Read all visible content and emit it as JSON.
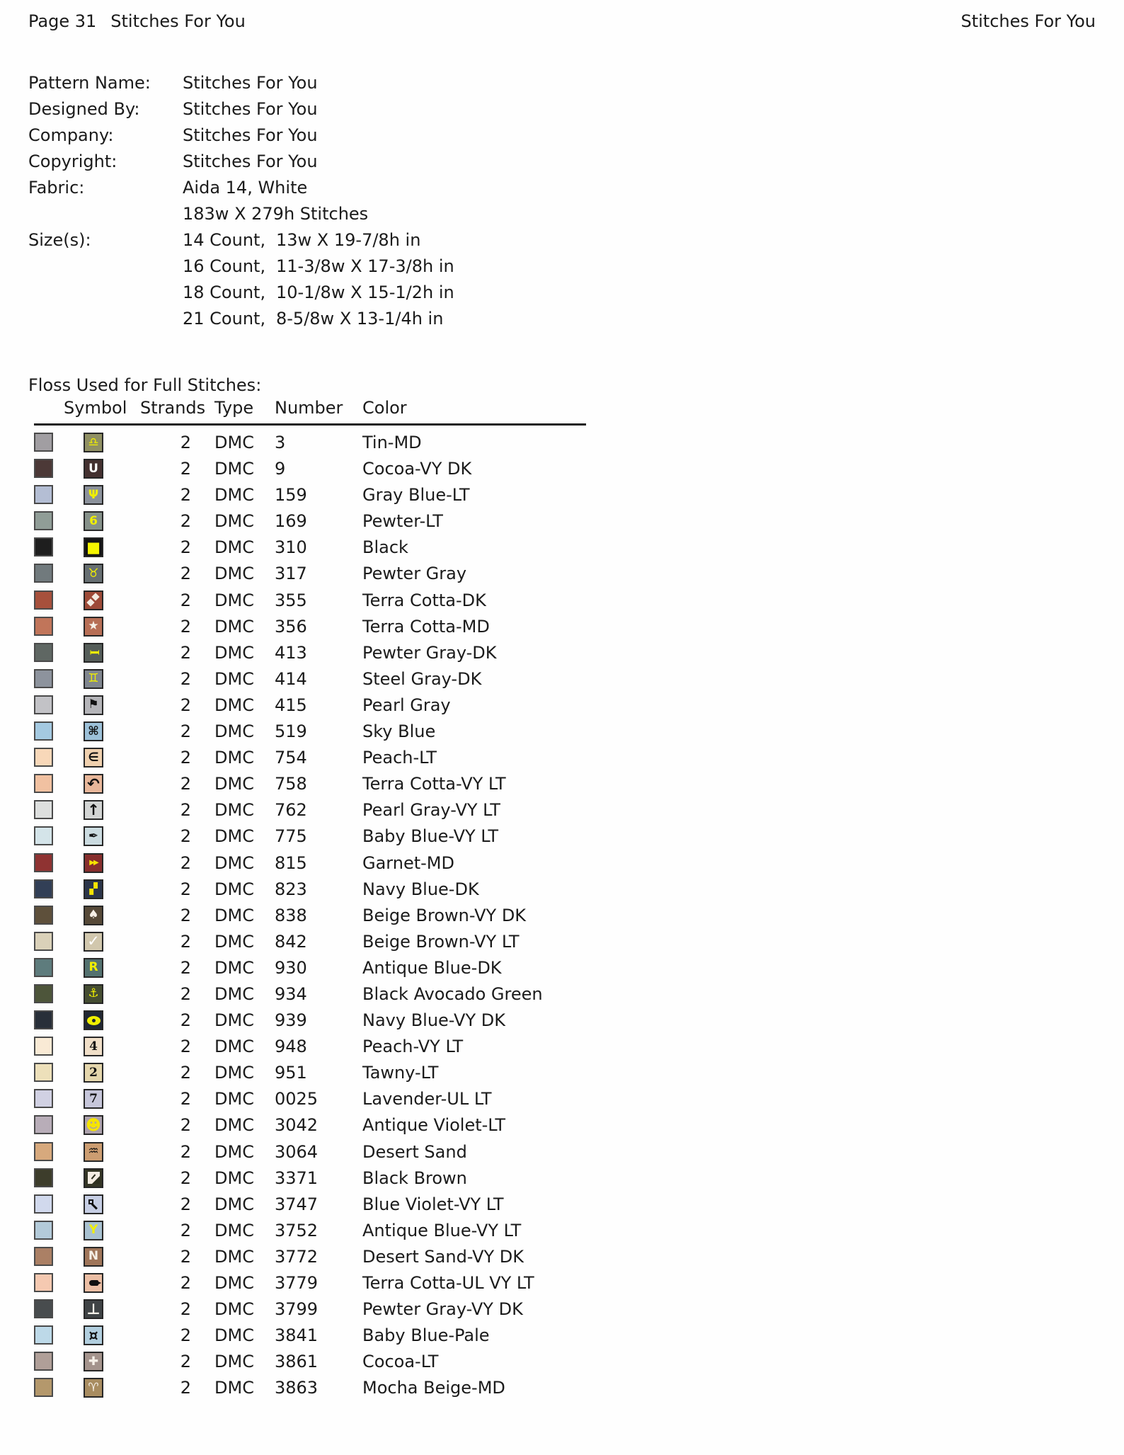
{
  "header": {
    "page_label": "Page 31",
    "title": "Stitches For You",
    "right_title": "Stitches For You"
  },
  "info": {
    "rows": [
      {
        "label": "Pattern Name:",
        "value": "Stitches For You"
      },
      {
        "label": "Designed By:",
        "value": "Stitches For You"
      },
      {
        "label": "Company:",
        "value": "Stitches For You"
      },
      {
        "label": "Copyright:",
        "value": "Stitches For You"
      },
      {
        "label": "Fabric:",
        "value": "Aida 14, White"
      },
      {
        "label": "",
        "value": "183w X 279h Stitches"
      },
      {
        "label": "Size(s):",
        "count": "14 Count,",
        "dims": "13w X 19-7/8h in"
      },
      {
        "label": "",
        "count": "16 Count,",
        "dims": "11-3/8w X 17-3/8h in"
      },
      {
        "label": "",
        "count": "18 Count,",
        "dims": "10-1/8w X 15-1/2h in"
      },
      {
        "label": "",
        "count": "21 Count,",
        "dims": "8-5/8w X 13-1/4h in"
      }
    ]
  },
  "floss": {
    "title": "Floss Used for Full Stitches:",
    "columns": [
      "Symbol",
      "Strands",
      "Type",
      "Number",
      "Color"
    ],
    "rows": [
      {
        "swatch": "#a19ea2",
        "bg": "#8f8f63",
        "fg": "#f0ef00",
        "glyph": "♎",
        "icon": "libra-icon",
        "strands": "2",
        "type": "DMC",
        "number": "3",
        "color_name": "Tin-MD"
      },
      {
        "swatch": "#4c3937",
        "bg": "#443130",
        "fg": "#ffffff",
        "glyph": "U",
        "icon": "letter-u-icon",
        "strands": "2",
        "type": "DMC",
        "number": "9",
        "color_name": "Cocoa-VY DK"
      },
      {
        "swatch": "#b4bed4",
        "bg": "#8b919b",
        "fg": "#f0ef00",
        "glyph": "Ψ",
        "icon": "psi-icon",
        "strands": "2",
        "type": "DMC",
        "number": "159",
        "color_name": "Gray Blue-LT"
      },
      {
        "swatch": "#909d97",
        "bg": "#859089",
        "fg": "#f0ef00",
        "glyph": "6",
        "icon": "digit-6-icon",
        "strands": "2",
        "type": "DMC",
        "number": "169",
        "color_name": "Pewter-LT"
      },
      {
        "swatch": "#1e1e1e",
        "bg": "#141414",
        "fg": "#f5f500",
        "glyph": "■",
        "cls": "big",
        "icon": "filled-square-icon",
        "strands": "2",
        "type": "DMC",
        "number": "310",
        "color_name": "Black"
      },
      {
        "swatch": "#717a7d",
        "bg": "#666e71",
        "fg": "#f0ef00",
        "glyph": "♉",
        "icon": "taurus-icon",
        "strands": "2",
        "type": "DMC",
        "number": "317",
        "color_name": "Pewter Gray"
      },
      {
        "swatch": "#a7503c",
        "bg": "#9d4a37",
        "shape": "diamonds",
        "icon": "double-diamond-icon",
        "strands": "2",
        "type": "DMC",
        "number": "355",
        "color_name": "Terra Cotta-DK"
      },
      {
        "swatch": "#c1755a",
        "bg": "#b76e55",
        "fg": "#f6f0e8",
        "glyph": "★",
        "icon": "star-icon",
        "strands": "2",
        "type": "DMC",
        "number": "356",
        "color_name": "Terra Cotta-MD"
      },
      {
        "swatch": "#5f6763",
        "bg": "#555d59",
        "fg": "#f0ef00",
        "glyph": "I",
        "cls": "rot90",
        "icon": "i-beam-icon",
        "strands": "2",
        "type": "DMC",
        "number": "413",
        "color_name": "Pewter Gray-DK"
      },
      {
        "swatch": "#8d939d",
        "bg": "#7f858e",
        "fg": "#f0ef00",
        "glyph": "♊",
        "icon": "gemini-icon",
        "strands": "2",
        "type": "DMC",
        "number": "414",
        "color_name": "Steel Gray-DK"
      },
      {
        "swatch": "#c2c2c6",
        "bg": "#b4b4b8",
        "fg": "#111111",
        "glyph": "⚑",
        "icon": "flag-icon",
        "strands": "2",
        "type": "DMC",
        "number": "415",
        "color_name": "Pearl Gray"
      },
      {
        "swatch": "#a4c9e1",
        "bg": "#9cc0d8",
        "fg": "#111111",
        "glyph": "⌘",
        "icon": "command-icon",
        "strands": "2",
        "type": "DMC",
        "number": "519",
        "color_name": "Sky Blue"
      },
      {
        "swatch": "#f8d8b9",
        "bg": "#efd0ae",
        "fg": "#111111",
        "glyph": "∈",
        "icon": "element-of-icon",
        "strands": "2",
        "type": "DMC",
        "number": "754",
        "color_name": "Peach-LT"
      },
      {
        "swatch": "#f1c1a1",
        "bg": "#e8b79a",
        "fg": "#111111",
        "glyph": "↶",
        "cls": "big",
        "icon": "curved-arrow-icon",
        "strands": "2",
        "type": "DMC",
        "number": "758",
        "color_name": "Terra Cotta-VY LT"
      },
      {
        "swatch": "#dddfde",
        "bg": "#d2d4d3",
        "fg": "#111111",
        "glyph": "↑",
        "cls": "big",
        "icon": "up-arrow-icon",
        "strands": "2",
        "type": "DMC",
        "number": "762",
        "color_name": "Pearl Gray-VY LT"
      },
      {
        "swatch": "#d4e4e9",
        "bg": "#cbdbe0",
        "fg": "#111111",
        "glyph": "✒",
        "icon": "pen-nib-icon",
        "strands": "2",
        "type": "DMC",
        "number": "775",
        "color_name": "Baby Blue-VY LT"
      },
      {
        "swatch": "#8f3332",
        "bg": "#872e2d",
        "fg": "#f5e400",
        "glyph": "▶▶",
        "cls": "ff",
        "icon": "fast-forward-icon",
        "strands": "2",
        "type": "DMC",
        "number": "815",
        "color_name": "Garnet-MD"
      },
      {
        "swatch": "#323f56",
        "bg": "#2b354a",
        "fg": "#f5e400",
        "glyph": "▞",
        "cls": "block",
        "icon": "stepped-squares-icon",
        "strands": "2",
        "type": "DMC",
        "number": "823",
        "color_name": "Navy Blue-DK"
      },
      {
        "swatch": "#5e503b",
        "bg": "#564938",
        "fg": "#f6f0e8",
        "glyph": "♠",
        "icon": "spade-icon",
        "strands": "2",
        "type": "DMC",
        "number": "838",
        "color_name": "Beige Brown-VY DK"
      },
      {
        "swatch": "#dad1b9",
        "bg": "#d1c7ad",
        "fg": "#ffffff",
        "glyph": "✓",
        "cls": "big",
        "icon": "check-mark-icon",
        "strands": "2",
        "type": "DMC",
        "number": "842",
        "color_name": "Beige Brown-VY LT"
      },
      {
        "swatch": "#5e7c7d",
        "bg": "#53716f",
        "fg": "#f0ef00",
        "glyph": "R",
        "icon": "letter-r-icon",
        "strands": "2",
        "type": "DMC",
        "number": "930",
        "color_name": "Antique Blue-DK"
      },
      {
        "swatch": "#4d553a",
        "bg": "#454d32",
        "fg": "#f0ef00",
        "glyph": "⚓",
        "icon": "anchor-icon",
        "strands": "2",
        "type": "DMC",
        "number": "934",
        "color_name": "Black Avocado Green"
      },
      {
        "swatch": "#282f39",
        "bg": "#212733",
        "shape": "eye",
        "icon": "eye-icon",
        "strands": "2",
        "type": "DMC",
        "number": "939",
        "color_name": "Navy Blue-VY DK"
      },
      {
        "swatch": "#f9ead5",
        "bg": "#f0dfc8",
        "fg": "#111111",
        "glyph": "4",
        "cls": "serif",
        "icon": "digit-4-icon",
        "strands": "2",
        "type": "DMC",
        "number": "948",
        "color_name": "Peach-VY LT"
      },
      {
        "swatch": "#ede0ba",
        "bg": "#e4d6ac",
        "fg": "#111111",
        "glyph": "2",
        "cls": "serif",
        "icon": "digit-2-icon",
        "strands": "2",
        "type": "DMC",
        "number": "951",
        "color_name": "Tawny-LT"
      },
      {
        "swatch": "#d1d1e3",
        "bg": "#c6c6da",
        "fg": "#111111",
        "glyph": "7",
        "cls": "serif",
        "icon": "digit-7-icon",
        "strands": "2",
        "type": "DMC",
        "number": "0025",
        "color_name": "Lavender-UL LT"
      },
      {
        "swatch": "#b8adb8",
        "bg": "#aca1ac",
        "fg": "#f5e400",
        "glyph": "☻",
        "cls": "big",
        "icon": "smiley-icon",
        "strands": "2",
        "type": "DMC",
        "number": "3042",
        "color_name": "Antique Violet-LT"
      },
      {
        "swatch": "#d7a97d",
        "bg": "#cc9d71",
        "fg": "#111111",
        "glyph": "♒",
        "icon": "waves-icon",
        "strands": "2",
        "type": "DMC",
        "number": "3064",
        "color_name": "Desert Sand"
      },
      {
        "swatch": "#3d3d2b",
        "bg": "#343525",
        "shape": "folded",
        "icon": "folded-paper-icon",
        "strands": "2",
        "type": "DMC",
        "number": "3371",
        "color_name": "Black Brown"
      },
      {
        "swatch": "#d1d9ed",
        "bg": "#c5cde3",
        "shape": "magnifier",
        "icon": "magnifier-icon",
        "strands": "2",
        "type": "DMC",
        "number": "3747",
        "color_name": "Blue Violet-VY LT"
      },
      {
        "swatch": "#b3cad9",
        "bg": "#a7c0d0",
        "fg": "#f0ef00",
        "glyph": "Y",
        "icon": "letter-y-icon",
        "strands": "2",
        "type": "DMC",
        "number": "3752",
        "color_name": "Antique Blue-VY LT"
      },
      {
        "swatch": "#ab8065",
        "bg": "#9f7559",
        "fg": "#f6f0e8",
        "glyph": "N",
        "icon": "letter-n-icon",
        "strands": "2",
        "type": "DMC",
        "number": "3772",
        "color_name": "Desert Sand-VY DK"
      },
      {
        "swatch": "#f5c9b1",
        "bg": "#ebbea4",
        "shape": "tag",
        "icon": "tag-icon",
        "strands": "2",
        "type": "DMC",
        "number": "3779",
        "color_name": "Terra Cotta-UL VY LT"
      },
      {
        "swatch": "#484c4e",
        "bg": "#3f4345",
        "fg": "#f6f0e8",
        "glyph": "⊥",
        "cls": "big",
        "icon": "up-tack-icon",
        "strands": "2",
        "type": "DMC",
        "number": "3799",
        "color_name": "Pewter Gray-VY DK"
      },
      {
        "swatch": "#bdd9e8",
        "bg": "#b1cede",
        "fg": "#111111",
        "glyph": "¤",
        "cls": "big",
        "icon": "currency-sign-icon",
        "strands": "2",
        "type": "DMC",
        "number": "3841",
        "color_name": "Baby Blue-Pale"
      },
      {
        "swatch": "#b09f98",
        "bg": "#a4938c",
        "fg": "#f6f0e8",
        "glyph": "✚",
        "icon": "blob-cross-icon",
        "strands": "2",
        "type": "DMC",
        "number": "3861",
        "color_name": "Cocoa-LT"
      },
      {
        "swatch": "#b4986c",
        "bg": "#a88c60",
        "fg": "#f6f0e8",
        "glyph": "♈",
        "icon": "aries-icon",
        "strands": "2",
        "type": "DMC",
        "number": "3863",
        "color_name": "Mocha Beige-MD"
      }
    ]
  }
}
